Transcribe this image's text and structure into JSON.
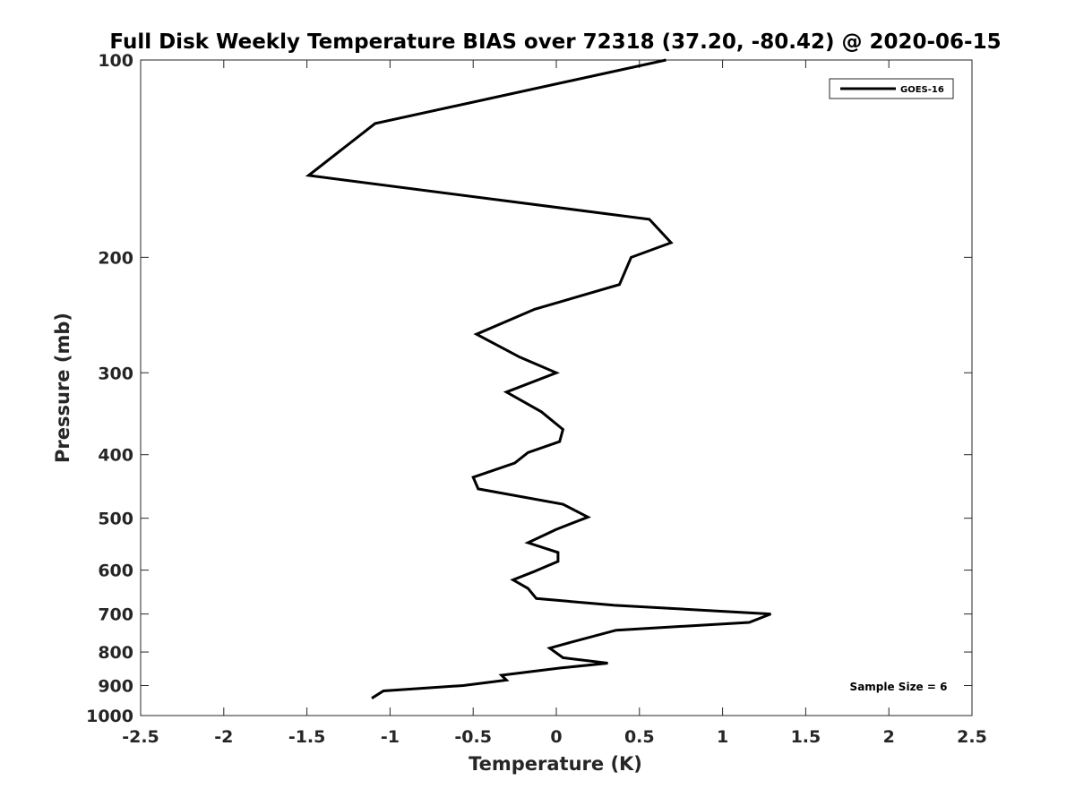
{
  "chart_data": {
    "type": "line",
    "title": "Full Disk Weekly Temperature BIAS over 72318 (37.20, -80.42) @ 2020-06-15",
    "xlabel": "Temperature (K)",
    "ylabel": "Pressure (mb)",
    "xlim": [
      -2.5,
      2.5
    ],
    "ylim": [
      100,
      1000
    ],
    "y_scale": "log",
    "y_reversed": true,
    "x_ticks": [
      -2.5,
      -2,
      -1.5,
      -1,
      -0.5,
      0,
      0.5,
      1,
      1.5,
      2,
      2.5
    ],
    "x_tick_labels": [
      "-2.5",
      "-2",
      "-1.5",
      "-1",
      "-0.5",
      "0",
      "0.5",
      "1",
      "1.5",
      "2",
      "2.5"
    ],
    "y_ticks": [
      100,
      200,
      300,
      400,
      500,
      600,
      700,
      800,
      900,
      1000
    ],
    "y_tick_labels": [
      "100",
      "200",
      "300",
      "400",
      "500",
      "600",
      "700",
      "800",
      "900",
      "1000"
    ],
    "grid": false,
    "legend_position": "top-right",
    "annotation": "Sample Size = 6",
    "series": [
      {
        "name": "GOES-16",
        "color": "#000000",
        "points": [
          [
            0.66,
            100
          ],
          [
            -1.09,
            125
          ],
          [
            -1.49,
            150
          ],
          [
            0.56,
            175
          ],
          [
            0.69,
            190
          ],
          [
            0.45,
            200
          ],
          [
            0.38,
            220
          ],
          [
            -0.13,
            240
          ],
          [
            -0.48,
            262
          ],
          [
            -0.22,
            284
          ],
          [
            0.0,
            300
          ],
          [
            -0.3,
            321
          ],
          [
            -0.09,
            344
          ],
          [
            0.04,
            366
          ],
          [
            0.02,
            382
          ],
          [
            -0.17,
            397
          ],
          [
            -0.25,
            412
          ],
          [
            -0.5,
            433
          ],
          [
            -0.47,
            451
          ],
          [
            0.04,
            476
          ],
          [
            0.19,
            498
          ],
          [
            0.0,
            520
          ],
          [
            -0.17,
            545
          ],
          [
            0.01,
            564
          ],
          [
            0.01,
            582
          ],
          [
            -0.14,
            604
          ],
          [
            -0.26,
            621
          ],
          [
            -0.17,
            640
          ],
          [
            -0.12,
            663
          ],
          [
            0.35,
            679
          ],
          [
            1.29,
            700
          ],
          [
            1.16,
            721
          ],
          [
            0.36,
            741
          ],
          [
            0.08,
            774
          ],
          [
            -0.04,
            789
          ],
          [
            0.04,
            816
          ],
          [
            0.31,
            832
          ],
          [
            0.03,
            846
          ],
          [
            -0.33,
            868
          ],
          [
            -0.3,
            883
          ],
          [
            -0.56,
            900
          ],
          [
            -1.04,
            917
          ],
          [
            -1.11,
            941
          ]
        ]
      }
    ]
  }
}
